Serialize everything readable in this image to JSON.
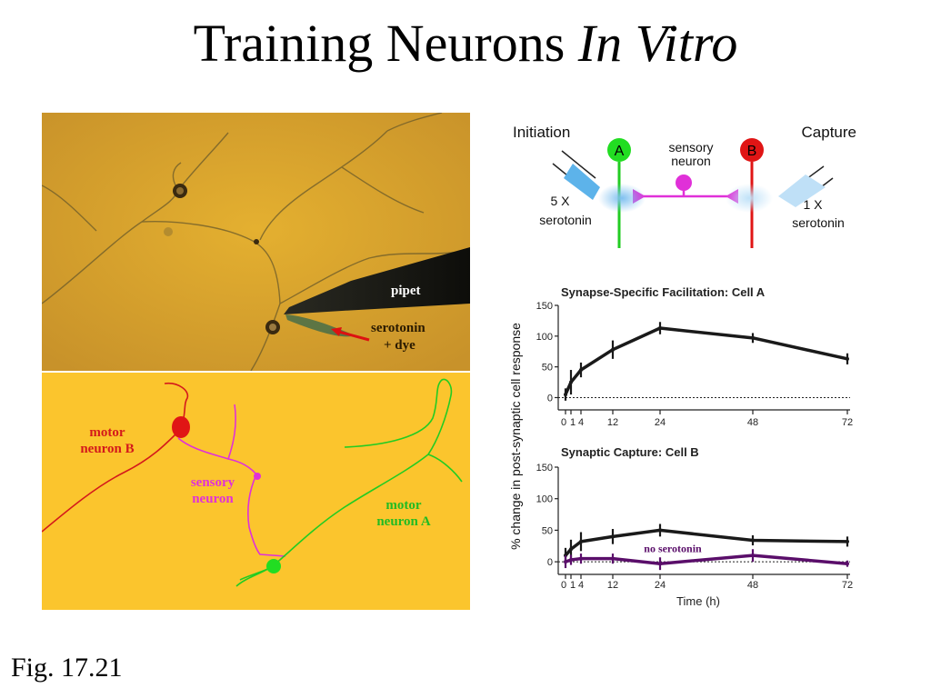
{
  "slide": {
    "title_plain": "Training Neurons ",
    "title_italic": "In Vitro",
    "caption": "Fig. 17.21"
  },
  "photo": {
    "pipet_label": "pipet",
    "arrow_label_line1": "serotonin",
    "arrow_label_line2": "+ dye",
    "colors": {
      "background": "#d9a42a"
    }
  },
  "tracing": {
    "motor_b_line1": "motor",
    "motor_b_line2": "neuron B",
    "sensory_line1": "sensory",
    "sensory_line2": "neuron",
    "motor_a_line1": "motor",
    "motor_a_line2": "neuron A",
    "colors": {
      "background": "#fbc52d",
      "motor_b": "#e0181b",
      "sensory": "#e030d8",
      "motor_a": "#22cc22"
    }
  },
  "schematic": {
    "initiation": "Initiation",
    "capture": "Capture",
    "cell_a": "A",
    "cell_b": "B",
    "sensory_line1": "sensory",
    "sensory_line2": "neuron",
    "left_dose_line1": "5 X",
    "left_dose_line2": "serotonin",
    "right_dose_line1": "1 X",
    "right_dose_line2": "serotonin"
  },
  "shared_ylabel": "% change in post-synaptic cell response",
  "chart_data": [
    {
      "type": "line",
      "title": "Synapse-Specific Facilitation: Cell A",
      "xlabel": "",
      "ylabel": "% change in post-synaptic cell response",
      "x_ticks": [
        "0",
        "1",
        "4",
        "12",
        "24",
        "48",
        "72"
      ],
      "y_ticks": [
        "150",
        "100",
        "50",
        "0"
      ],
      "ylim": [
        -20,
        150
      ],
      "baseline": 0,
      "series": [
        {
          "x": [
            0,
            1,
            4,
            12,
            24,
            48,
            72
          ],
          "y": [
            5,
            25,
            45,
            78,
            113,
            97,
            63
          ],
          "err": [
            10,
            20,
            12,
            15,
            10,
            8,
            9
          ],
          "color": "#1a1a1a"
        }
      ]
    },
    {
      "type": "line",
      "title": "Synaptic Capture: Cell B",
      "xlabel": "Time (h)",
      "ylabel": "% change in post-synaptic cell response",
      "x_ticks": [
        "0",
        "1",
        "4",
        "12",
        "24",
        "48",
        "72"
      ],
      "y_ticks": [
        "150",
        "100",
        "50",
        "0"
      ],
      "ylim": [
        -20,
        150
      ],
      "baseline": 0,
      "annotation": "no serotonin",
      "series": [
        {
          "x": [
            0,
            1,
            4,
            12,
            24,
            48,
            72
          ],
          "y": [
            10,
            20,
            32,
            40,
            50,
            34,
            32
          ],
          "err": [
            12,
            15,
            15,
            12,
            10,
            8,
            8
          ],
          "color": "#1a1a1a"
        },
        {
          "name": "no serotonin",
          "x": [
            0,
            1,
            4,
            12,
            24,
            48,
            72
          ],
          "y": [
            0,
            3,
            5,
            5,
            -3,
            10,
            -3
          ],
          "err": [
            10,
            8,
            8,
            8,
            10,
            10,
            5
          ],
          "color": "#5a0e6a"
        }
      ]
    }
  ]
}
